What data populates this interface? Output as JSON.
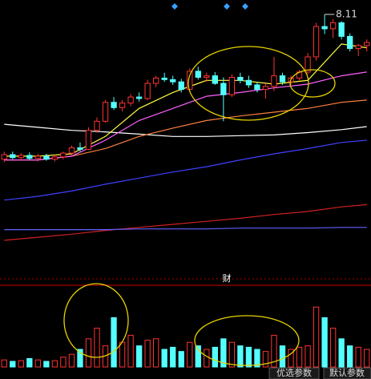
{
  "chart_data": {
    "type": "candlestick",
    "open": [
      6.2,
      6.26,
      6.22,
      6.25,
      6.21,
      6.24,
      6.2,
      6.23,
      6.28,
      6.35,
      6.33,
      6.58,
      6.7,
      6.95,
      6.88,
      6.94,
      7.02,
      7.0,
      7.2,
      7.27,
      7.25,
      7.22,
      7.12,
      7.36,
      7.28,
      7.3,
      7.2,
      7.05,
      7.28,
      7.24,
      7.18,
      7.12,
      7.16,
      7.3,
      7.22,
      7.27,
      7.35,
      7.55,
      7.95,
      7.92,
      8.0,
      7.82,
      7.66,
      7.7
    ],
    "high": [
      6.3,
      6.3,
      6.28,
      6.29,
      6.27,
      6.27,
      6.26,
      6.3,
      6.38,
      6.42,
      6.62,
      6.75,
      6.98,
      7.02,
      6.98,
      7.06,
      7.08,
      7.25,
      7.3,
      7.34,
      7.3,
      7.26,
      7.4,
      7.42,
      7.34,
      7.35,
      7.28,
      7.32,
      7.34,
      7.3,
      7.22,
      7.2,
      7.55,
      7.34,
      7.3,
      7.38,
      7.6,
      8.0,
      8.11,
      8.05,
      8.02,
      7.86,
      7.72,
      7.78
    ],
    "low": [
      6.16,
      6.2,
      6.18,
      6.19,
      6.17,
      6.18,
      6.17,
      6.2,
      6.25,
      6.3,
      6.32,
      6.55,
      6.68,
      6.85,
      6.83,
      6.9,
      6.96,
      6.98,
      7.15,
      7.22,
      7.18,
      7.08,
      7.1,
      7.25,
      7.22,
      7.18,
      6.7,
      7.02,
      7.2,
      7.14,
      7.08,
      7.0,
      7.1,
      7.18,
      7.18,
      7.24,
      7.32,
      7.5,
      7.85,
      7.8,
      7.78,
      7.62,
      7.56,
      7.62
    ],
    "close": [
      6.26,
      6.22,
      6.25,
      6.21,
      6.24,
      6.2,
      6.23,
      6.28,
      6.35,
      6.33,
      6.58,
      6.7,
      6.95,
      6.88,
      6.94,
      7.02,
      7.0,
      7.2,
      7.27,
      7.25,
      7.22,
      7.12,
      7.36,
      7.28,
      7.3,
      7.2,
      7.05,
      7.28,
      7.24,
      7.18,
      7.12,
      7.16,
      7.3,
      7.22,
      7.27,
      7.35,
      7.55,
      7.95,
      7.92,
      8.0,
      7.82,
      7.66,
      7.7,
      7.74
    ],
    "up_color": "#ff3232",
    "down_color": "#54ffff",
    "ylim": [
      4.6,
      8.3
    ],
    "ma_x": [
      0,
      4,
      8,
      12,
      16,
      20,
      24,
      28,
      32,
      36,
      40,
      43
    ],
    "moving_averages": [
      {
        "color": "#ffffff",
        "values": [
          6.66,
          6.62,
          6.58,
          6.56,
          6.53,
          6.5,
          6.5,
          6.51,
          6.52,
          6.55,
          6.59,
          6.63
        ]
      },
      {
        "color": "#ff8040",
        "values": [
          6.19,
          6.19,
          6.24,
          6.34,
          6.5,
          6.61,
          6.71,
          6.77,
          6.82,
          6.87,
          6.95,
          6.98
        ]
      },
      {
        "color": "#4040ff",
        "values": [
          5.66,
          5.71,
          5.78,
          5.87,
          5.95,
          6.03,
          6.1,
          6.19,
          6.27,
          6.34,
          6.42,
          6.45
        ]
      },
      {
        "color": "#d02020",
        "values": [
          5.13,
          5.17,
          5.21,
          5.26,
          5.3,
          5.34,
          5.38,
          5.42,
          5.47,
          5.51,
          5.57,
          5.6
        ]
      },
      {
        "color": "#6060ff",
        "values": [
          5.27,
          5.27,
          5.27,
          5.27,
          5.28,
          5.28,
          5.28,
          5.29,
          5.29,
          5.29,
          5.3,
          5.3
        ]
      },
      {
        "color": "#ff60ff",
        "values": [
          6.19,
          6.19,
          6.24,
          6.45,
          6.71,
          6.87,
          7.03,
          7.08,
          7.14,
          7.19,
          7.3,
          7.35
        ]
      },
      {
        "color": "#ffff40",
        "values": [
          6.24,
          6.24,
          6.27,
          6.5,
          6.87,
          7.08,
          7.24,
          7.24,
          7.19,
          7.24,
          7.72,
          7.67
        ]
      }
    ],
    "high_label": "8.11",
    "finance_marker": "财",
    "volume": [
      10,
      8,
      9,
      12,
      10,
      8,
      9,
      14,
      18,
      25,
      40,
      55,
      30,
      70,
      35,
      45,
      30,
      38,
      40,
      25,
      28,
      22,
      35,
      30,
      25,
      28,
      40,
      35,
      30,
      28,
      25,
      22,
      45,
      30,
      25,
      28,
      30,
      85,
      70,
      55,
      40,
      30,
      28,
      25
    ],
    "vlim": [
      0,
      100
    ],
    "buttons": [
      "优选参数",
      "默认参数"
    ]
  }
}
